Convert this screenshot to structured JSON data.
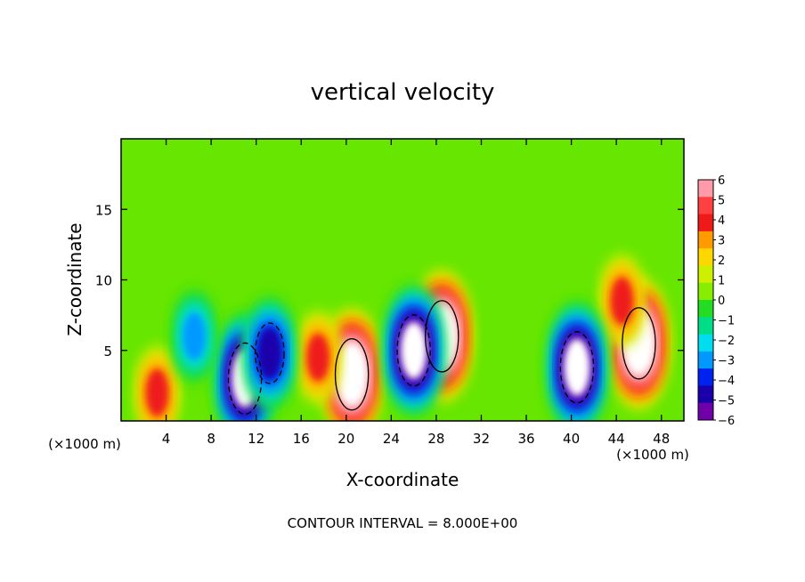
{
  "chart_data": {
    "type": "heatmap",
    "title": "vertical velocity",
    "xlabel": "X-coordinate",
    "ylabel": "Z-coordinate",
    "x_unit": "(×1000 m)",
    "y_unit": "(×1000 m)",
    "footer": "CONTOUR INTERVAL = 8.000E+00",
    "xlim": [
      0,
      50
    ],
    "ylim": [
      0,
      20
    ],
    "x_ticks": [
      4,
      8,
      12,
      16,
      20,
      24,
      28,
      32,
      36,
      40,
      44,
      48
    ],
    "y_ticks": [
      5,
      10,
      15
    ],
    "colorbar": {
      "levels": [
        "6",
        "5",
        "4",
        "3",
        "2",
        "1",
        "0",
        "−1",
        "−2",
        "−3",
        "−4",
        "−5",
        "−6"
      ],
      "colors": [
        "#ff9aa8",
        "#ff4040",
        "#ee1a1a",
        "#ff9a00",
        "#ffd700",
        "#ccf000",
        "#88ee00",
        "#22dd22",
        "#00dd88",
        "#00ddee",
        "#0099ff",
        "#0022ee",
        "#1a00aa",
        "#7000aa"
      ],
      "range": [
        -6,
        6
      ]
    },
    "features": [
      {
        "kind": "updraft",
        "x": 20.5,
        "z": 3.3,
        "peak": 8
      },
      {
        "kind": "updraft",
        "x": 46.0,
        "z": 5.5,
        "peak": 8
      },
      {
        "kind": "updraft",
        "x": 28.5,
        "z": 6.0,
        "peak": 8
      },
      {
        "kind": "updraft",
        "x": 3.2,
        "z": 2.0,
        "peak": 4
      },
      {
        "kind": "updraft",
        "x": 17.5,
        "z": 4.5,
        "peak": 4
      },
      {
        "kind": "updraft",
        "x": 44.5,
        "z": 8.5,
        "peak": 4
      },
      {
        "kind": "downdraft",
        "x": 11.0,
        "z": 3.0,
        "peak": -8
      },
      {
        "kind": "downdraft",
        "x": 26.0,
        "z": 5.0,
        "peak": -8
      },
      {
        "kind": "downdraft",
        "x": 40.5,
        "z": 3.8,
        "peak": -8
      },
      {
        "kind": "downdraft",
        "x": 13.2,
        "z": 4.8,
        "peak": -6
      },
      {
        "kind": "downdraft",
        "x": 6.5,
        "z": 6.0,
        "peak": -4
      }
    ]
  }
}
